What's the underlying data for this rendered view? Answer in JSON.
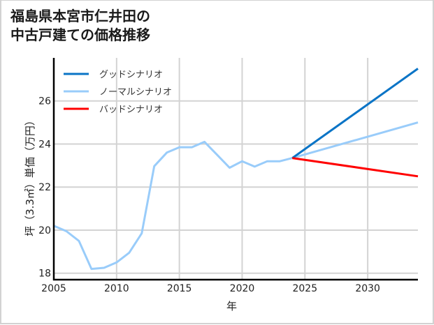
{
  "title": {
    "line1": "福島県本宮市仁井田の",
    "line2": "中古戸建ての価格推移"
  },
  "colors": {
    "good": "#0a74c6",
    "normal": "#99ccfa",
    "bad": "#ff0000",
    "grid": "#d3d3d3",
    "axis": "#000000"
  },
  "chart_data": {
    "type": "line",
    "title": "福島県本宮市仁井田の中古戸建ての価格推移",
    "xlabel": "年",
    "ylabel": "坪（3.3㎡）単価（万円）",
    "xlim": [
      2005,
      2034
    ],
    "ylim": [
      17.7,
      28.0
    ],
    "xticks": [
      2005,
      2010,
      2015,
      2020,
      2025,
      2030
    ],
    "yticks": [
      18,
      20,
      22,
      24,
      26
    ],
    "grid": true,
    "legend_position": "upper left",
    "series": [
      {
        "name": "グッドシナリオ",
        "key": "good",
        "x": [
          2024,
          2034
        ],
        "values": [
          23.35,
          27.5
        ]
      },
      {
        "name": "ノーマルシナリオ",
        "key": "normal",
        "x": [
          2005,
          2006,
          2007,
          2008,
          2009,
          2010,
          2011,
          2012,
          2013,
          2014,
          2015,
          2016,
          2017,
          2018,
          2019,
          2020,
          2021,
          2022,
          2023,
          2024,
          2034
        ],
        "values": [
          20.2,
          19.95,
          19.5,
          18.2,
          18.25,
          18.5,
          18.95,
          19.85,
          22.97,
          23.6,
          23.85,
          23.85,
          24.1,
          23.5,
          22.9,
          23.2,
          22.95,
          23.2,
          23.2,
          23.35,
          25.0
        ]
      },
      {
        "name": "バッドシナリオ",
        "key": "bad",
        "x": [
          2024,
          2034
        ],
        "values": [
          23.35,
          22.5
        ]
      }
    ]
  }
}
